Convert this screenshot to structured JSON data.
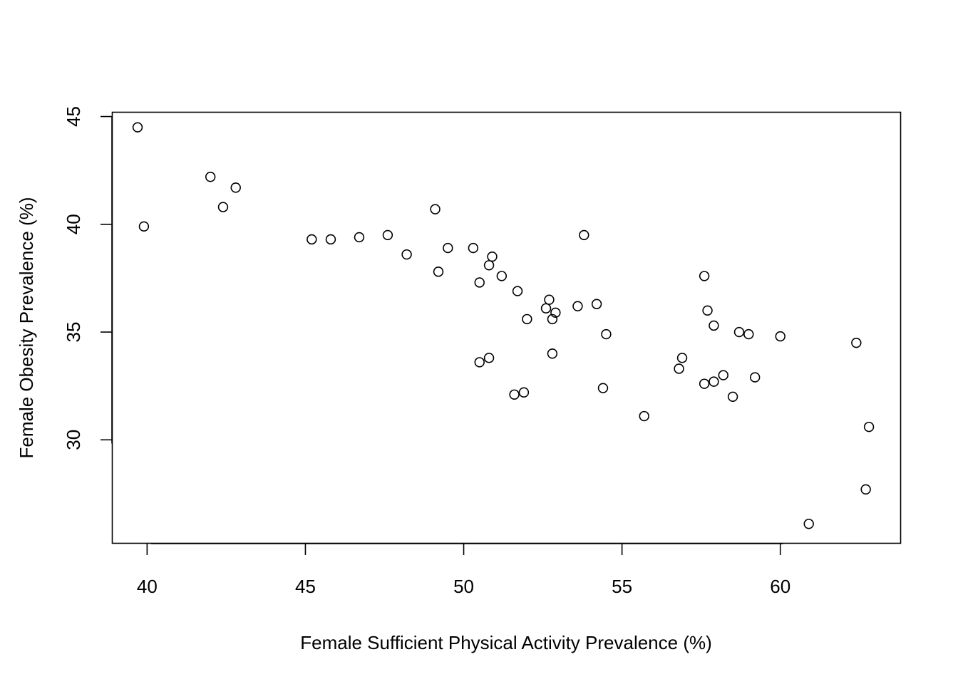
{
  "chart_data": {
    "type": "scatter",
    "title": "",
    "xlabel": "Female Sufficient Physical Activity Prevalence (%)",
    "ylabel": "Female Obesity Prevalence (%)",
    "xlim": [
      38.9,
      63.8
    ],
    "ylim": [
      25.2,
      45.2
    ],
    "xticks": [
      40,
      45,
      50,
      55,
      60
    ],
    "xtick_labels": [
      "40",
      "45",
      "50",
      "55",
      "60"
    ],
    "yticks": [
      30,
      35,
      40,
      45
    ],
    "ytick_labels": [
      "30",
      "35",
      "40",
      "45"
    ],
    "grid": false,
    "marker": "open-circle",
    "color": "#000000",
    "series": [
      {
        "points": [
          [
            39.7,
            44.5
          ],
          [
            39.9,
            39.9
          ],
          [
            42.0,
            42.2
          ],
          [
            42.4,
            40.8
          ],
          [
            42.8,
            41.7
          ],
          [
            45.2,
            39.3
          ],
          [
            45.8,
            39.3
          ],
          [
            46.7,
            39.4
          ],
          [
            47.6,
            39.5
          ],
          [
            48.2,
            38.6
          ],
          [
            49.1,
            40.7
          ],
          [
            49.2,
            37.8
          ],
          [
            49.5,
            38.9
          ],
          [
            50.3,
            38.9
          ],
          [
            50.5,
            37.3
          ],
          [
            50.5,
            33.6
          ],
          [
            50.8,
            38.1
          ],
          [
            50.8,
            33.8
          ],
          [
            50.9,
            38.5
          ],
          [
            51.2,
            37.6
          ],
          [
            51.6,
            32.1
          ],
          [
            51.7,
            36.9
          ],
          [
            51.9,
            32.2
          ],
          [
            52.0,
            35.6
          ],
          [
            52.6,
            36.1
          ],
          [
            52.7,
            36.5
          ],
          [
            52.8,
            35.6
          ],
          [
            52.8,
            34.0
          ],
          [
            52.9,
            35.9
          ],
          [
            53.6,
            36.2
          ],
          [
            53.8,
            39.5
          ],
          [
            54.2,
            36.3
          ],
          [
            54.4,
            32.4
          ],
          [
            54.5,
            34.9
          ],
          [
            55.7,
            31.1
          ],
          [
            56.8,
            33.3
          ],
          [
            56.9,
            33.8
          ],
          [
            57.6,
            37.6
          ],
          [
            57.6,
            32.6
          ],
          [
            57.7,
            36.0
          ],
          [
            57.9,
            35.3
          ],
          [
            57.9,
            32.7
          ],
          [
            58.2,
            33.0
          ],
          [
            58.5,
            32.0
          ],
          [
            58.7,
            35.0
          ],
          [
            59.0,
            34.9
          ],
          [
            59.2,
            32.9
          ],
          [
            60.0,
            34.8
          ],
          [
            60.9,
            26.1
          ],
          [
            62.4,
            34.5
          ],
          [
            62.7,
            27.7
          ],
          [
            62.8,
            30.6
          ]
        ]
      }
    ]
  }
}
